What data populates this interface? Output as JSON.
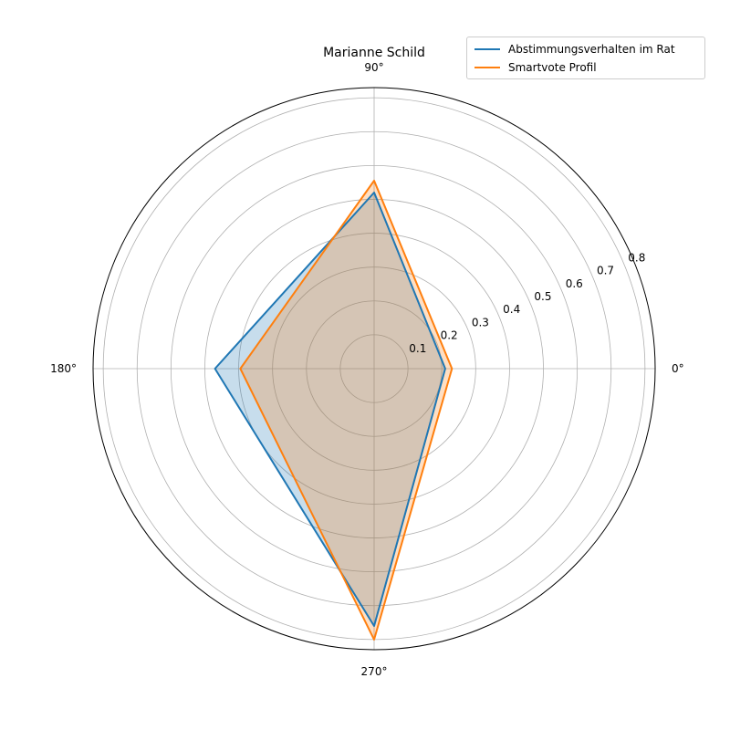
{
  "chart_data": {
    "type": "radar",
    "title": "Marianne Schild",
    "angle_ticks": [
      "0°",
      "90°",
      "180°",
      "270°"
    ],
    "radial_ticks": [
      0.1,
      0.2,
      0.3,
      0.4,
      0.5,
      0.6,
      0.7,
      0.8
    ],
    "radial_tick_labels": [
      "0.1",
      "0.2",
      "0.3",
      "0.4",
      "0.5",
      "0.6",
      "0.7",
      "0.8"
    ],
    "rlim": [
      0,
      0.83
    ],
    "grid": true,
    "legend": "top-right",
    "theta_degrees": [
      0,
      90,
      180,
      270
    ],
    "series": [
      {
        "name": "Abstimmungsverhalten im Rat",
        "color": "#1f77b4",
        "fill_alpha": 0.25,
        "values": [
          0.21,
          0.52,
          0.47,
          0.76
        ]
      },
      {
        "name": "Smartvote Profil",
        "color": "#ff7f0e",
        "fill_alpha": 0.25,
        "values": [
          0.23,
          0.555,
          0.395,
          0.8
        ]
      }
    ]
  }
}
